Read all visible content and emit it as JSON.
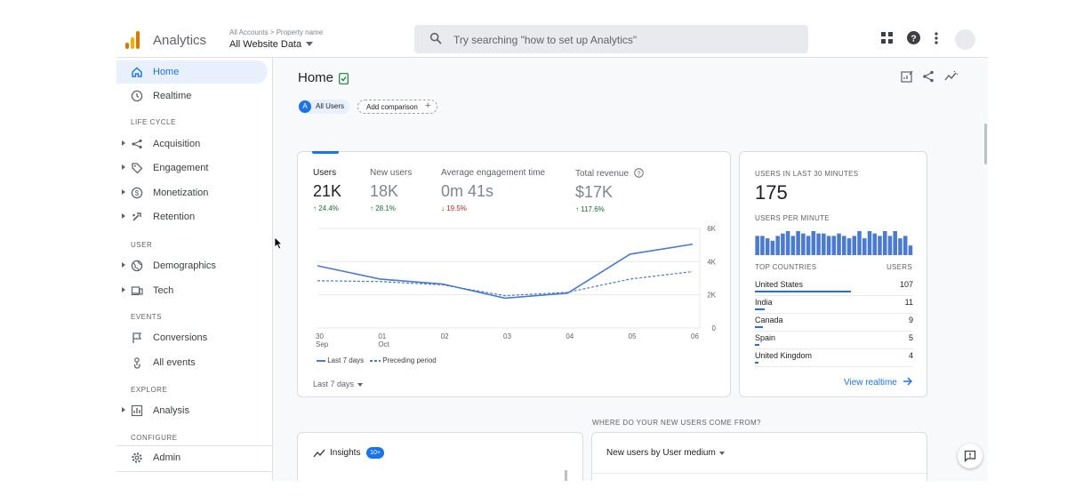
{
  "app": {
    "name": "Analytics",
    "brand_color": "#e37400",
    "accent_color": "#1a73e8"
  },
  "breadcrumb": {
    "path": "All Accounts > Property name",
    "property": "All Website Data"
  },
  "search": {
    "placeholder": "Try searching \"how to set up Analytics\""
  },
  "toolbar": {
    "icons": [
      "apps-grid-icon",
      "help-icon",
      "more-vert-icon",
      "avatar"
    ]
  },
  "sidebar": {
    "items": [
      {
        "label": "Home",
        "icon": "home-icon",
        "active": true
      },
      {
        "label": "Realtime",
        "icon": "clock-icon"
      }
    ],
    "sections": [
      {
        "title": "LIFE CYCLE",
        "items": [
          {
            "label": "Acquisition",
            "icon": "acquisition-icon"
          },
          {
            "label": "Engagement",
            "icon": "tag-icon"
          },
          {
            "label": "Monetization",
            "icon": "dollar-icon"
          },
          {
            "label": "Retention",
            "icon": "retention-icon"
          }
        ]
      },
      {
        "title": "USER",
        "items": [
          {
            "label": "Demographics",
            "icon": "globe-icon"
          },
          {
            "label": "Tech",
            "icon": "devices-icon"
          }
        ]
      },
      {
        "title": "EVENTS",
        "items": [
          {
            "label": "Conversions",
            "icon": "flag-icon"
          },
          {
            "label": "All events",
            "icon": "touch-icon"
          }
        ]
      },
      {
        "title": "EXPLORE",
        "items": [
          {
            "label": "Analysis",
            "icon": "analysis-icon"
          }
        ]
      },
      {
        "title": "CONFIGURE",
        "items": [
          {
            "label": "Admin",
            "icon": "gear-icon"
          }
        ]
      }
    ]
  },
  "main": {
    "title": "Home",
    "chips": {
      "all_users_letter": "A",
      "all_users": "All Users",
      "add_comparison": "Add comparison"
    }
  },
  "overview": {
    "metrics": [
      {
        "label": "Users",
        "value": "21K",
        "change": "24.4%",
        "direction": "up",
        "selected": true
      },
      {
        "label": "New users",
        "value": "18K",
        "change": "28.1%",
        "direction": "up"
      },
      {
        "label": "Average engagement time",
        "value": "0m 41s",
        "change": "19.5%",
        "direction": "down"
      },
      {
        "label": "Total revenue",
        "value": "$17K",
        "change": "117.6%",
        "direction": "up"
      }
    ],
    "legend": {
      "current": "Last 7 days",
      "previous": "Preceding period"
    },
    "date_range": "Last 7 days"
  },
  "chart_data": {
    "type": "line",
    "x": [
      "30 Sep",
      "01 Oct",
      "02",
      "03",
      "04",
      "05",
      "06"
    ],
    "x_ticks": [
      {
        "day": "30",
        "month": "Sep"
      },
      {
        "day": "01",
        "month": "Oct"
      },
      {
        "day": "02",
        "month": ""
      },
      {
        "day": "03",
        "month": ""
      },
      {
        "day": "04",
        "month": ""
      },
      {
        "day": "05",
        "month": ""
      },
      {
        "day": "06",
        "month": ""
      }
    ],
    "y_ticks": [
      "6K",
      "4K",
      "2K",
      "0"
    ],
    "ylim": [
      0,
      6000
    ],
    "series": [
      {
        "name": "Last 7 days",
        "values": [
          3750,
          2950,
          2650,
          1800,
          2100,
          4450,
          5050
        ],
        "style": "solid",
        "color": "#4a7bd0"
      },
      {
        "name": "Preceding period",
        "values": [
          2850,
          2800,
          2600,
          1950,
          2150,
          2950,
          3400
        ],
        "style": "dashed",
        "color": "#4a7bd0"
      }
    ],
    "grid": true
  },
  "realtime": {
    "title": "USERS IN LAST 30 MINUTES",
    "count": "175",
    "per_minute_title": "USERS PER MINUTE",
    "per_minute": [
      8,
      8,
      7,
      6,
      8,
      9,
      10,
      8,
      10,
      9,
      8,
      10,
      9,
      9,
      8,
      8,
      9,
      8,
      7,
      8,
      10,
      7,
      10,
      9,
      8,
      10,
      8,
      10,
      7,
      8,
      4
    ],
    "countries_header": "TOP COUNTRIES",
    "users_header": "USERS",
    "countries": [
      {
        "name": "United States",
        "users": "107",
        "share": 1.0
      },
      {
        "name": "India",
        "users": "11",
        "share": 0.1
      },
      {
        "name": "Canada",
        "users": "9",
        "share": 0.08
      },
      {
        "name": "Spain",
        "users": "5",
        "share": 0.05
      },
      {
        "name": "United Kingdom",
        "users": "4",
        "share": 0.04
      }
    ],
    "view_link": "View realtime"
  },
  "where_title": "WHERE DO YOUR NEW USERS COME FROM?",
  "insights": {
    "label": "Insights",
    "badge": "10+"
  },
  "new_users": {
    "label": "New users by User medium"
  }
}
